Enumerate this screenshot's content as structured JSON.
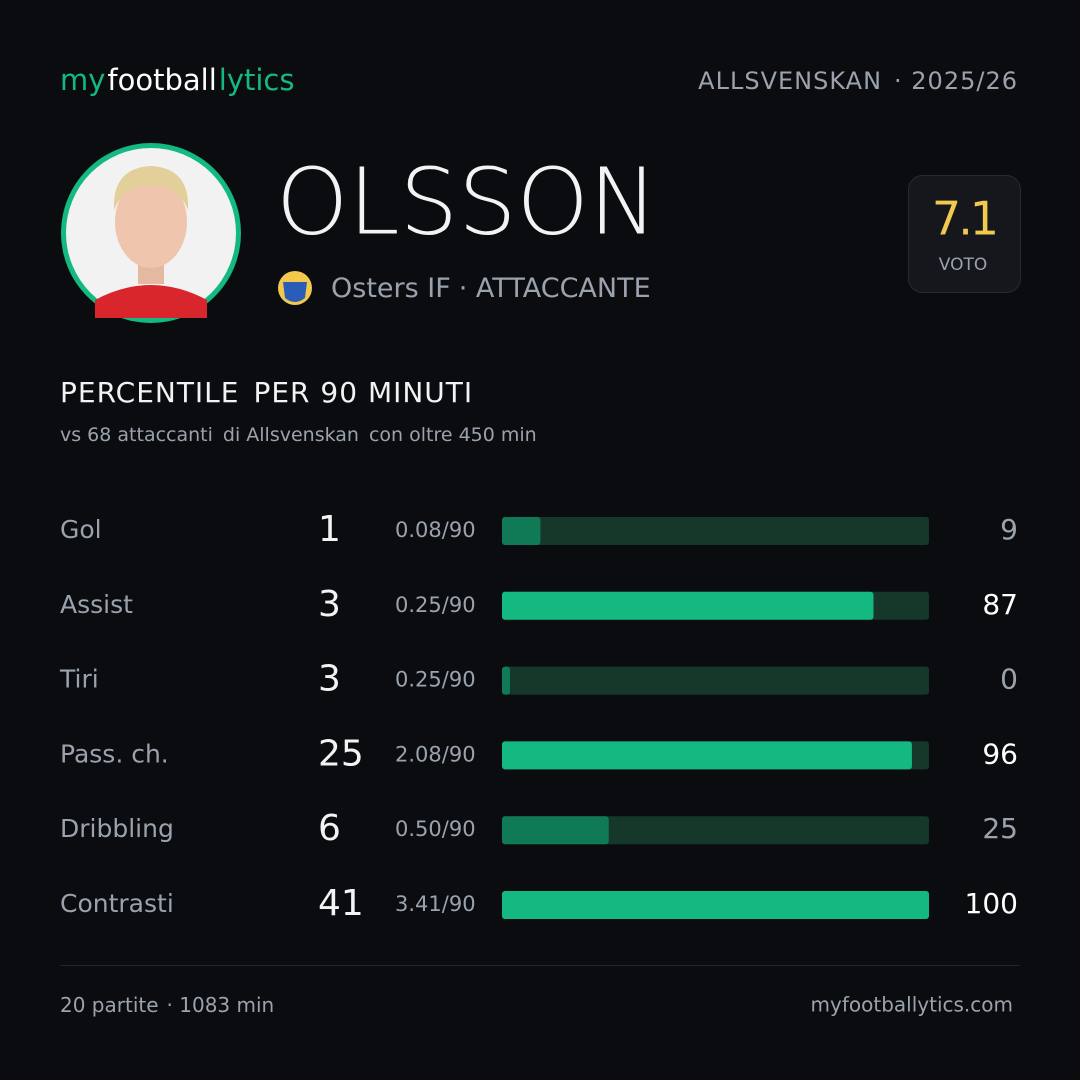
{
  "header": {
    "brand": [
      "my",
      "football",
      "lytics"
    ],
    "league": "ALLSVENSKAN",
    "season": "· 2025/26"
  },
  "player": {
    "name": "OLSSON",
    "team": "Osters IF",
    "role": "· ATTACCANTE",
    "rating": "7.1",
    "rating_label": "VOTO"
  },
  "section": {
    "title": [
      "PERCENTILE",
      "PER 90 MINUTI"
    ],
    "subtitle": [
      "vs 68 attaccanti",
      "di Allsvenskan",
      "con oltre 450 min"
    ]
  },
  "rows": [
    {
      "label": "Gol",
      "total": 1,
      "per90": "0.08/90",
      "percentile": 9,
      "color": "#0f7a55",
      "label_color": "#9aa3ad"
    },
    {
      "label": "Assist",
      "total": 3,
      "per90": "0.25/90",
      "percentile": 87,
      "color": "#13b981",
      "label_color": "#ffffff"
    },
    {
      "label": "Tiri",
      "total": 3,
      "per90": "0.25/90",
      "percentile": 0,
      "color": "#0f7a55",
      "label_color": "#9aa3ad"
    },
    {
      "label": "Pass. ch.",
      "total": 25,
      "per90": "2.08/90",
      "percentile": 96,
      "color": "#13b981",
      "label_color": "#ffffff"
    },
    {
      "label": "Dribbling",
      "total": 6,
      "per90": "0.50/90",
      "percentile": 25,
      "color": "#0f7a55",
      "label_color": "#9aa3ad"
    },
    {
      "label": "Contrasti",
      "total": 41,
      "per90": "3.41/90",
      "percentile": 100,
      "color": "#13b981",
      "label_color": "#ffffff"
    }
  ],
  "footer": {
    "matches": "20 partite",
    "minutes": "· 1083 min",
    "site": "myfootballytics.com"
  }
}
